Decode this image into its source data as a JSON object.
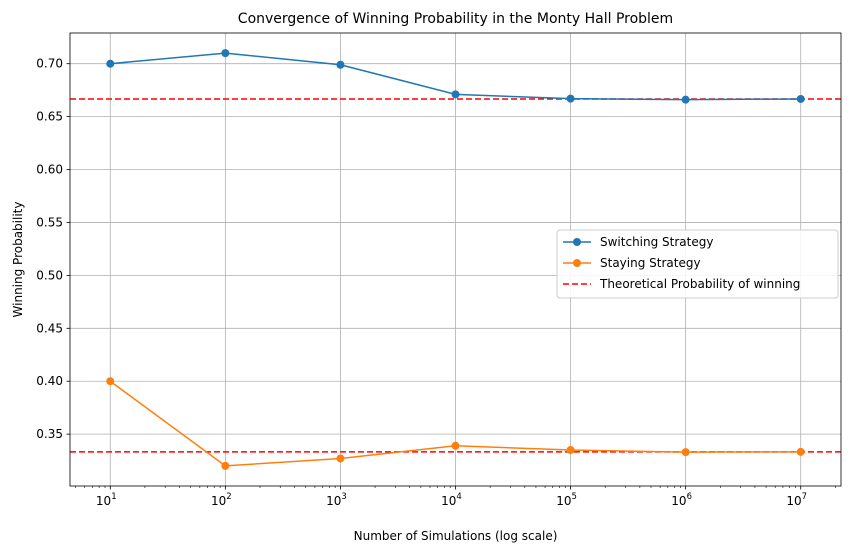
{
  "chart_data": {
    "type": "line",
    "title": "Convergence of Winning Probability in the Monty Hall Problem",
    "xlabel": "Number of Simulations (log scale)",
    "ylabel": "Winning Probability",
    "x_scale": "log",
    "x": [
      10,
      100,
      1000,
      10000,
      100000,
      1000000,
      10000000
    ],
    "x_tick_exponents": [
      "1",
      "2",
      "3",
      "4",
      "5",
      "6",
      "7"
    ],
    "x_tick_base": "10",
    "y_ticks": [
      "0.35",
      "0.40",
      "0.45",
      "0.50",
      "0.55",
      "0.60",
      "0.65",
      "0.70"
    ],
    "ylim": [
      0.301,
      0.729
    ],
    "grid": true,
    "legend_position": "center-right",
    "series": [
      {
        "name": "Switching Strategy",
        "color": "#1f77b4",
        "marker": "circle",
        "values": [
          0.7,
          0.71,
          0.699,
          0.671,
          0.667,
          0.666,
          0.6667
        ]
      },
      {
        "name": "Staying Strategy",
        "color": "#ff7f0e",
        "marker": "circle",
        "values": [
          0.4,
          0.32,
          0.327,
          0.339,
          0.335,
          0.333,
          0.3333
        ]
      }
    ],
    "reference_lines": [
      {
        "name": "Theoretical Probability of winning",
        "color": "#ff0000",
        "style": "dashed",
        "values": [
          0.6667,
          0.3333
        ]
      }
    ]
  }
}
